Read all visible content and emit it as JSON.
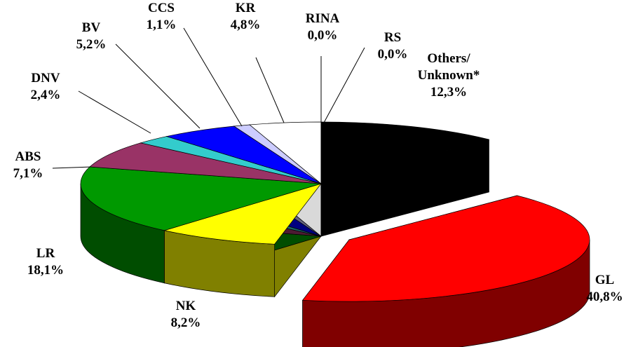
{
  "chart_data": {
    "type": "pie",
    "categories": [
      "Others/ Unknown*",
      "GL",
      "NK",
      "LR",
      "ABS",
      "DNV",
      "BV",
      "CCS",
      "KR",
      "RINA",
      "RS"
    ],
    "values": [
      12.3,
      40.8,
      8.2,
      18.1,
      7.1,
      2.4,
      5.2,
      1.1,
      4.8,
      0.0,
      0.0
    ],
    "value_labels": [
      "12,3%",
      "40,8%",
      "8,2%",
      "18,1%",
      "7,1%",
      "2,4%",
      "5,2%",
      "1,1%",
      "4,8%",
      "0,0%",
      "0,0%"
    ],
    "colors": [
      "#000000",
      "#ff0000",
      "#ffff00",
      "#009900",
      "#993366",
      "#33cccc",
      "#0000ff",
      "#ccccff",
      "#ffffff",
      "#ffffff",
      "#ffffff"
    ]
  }
}
